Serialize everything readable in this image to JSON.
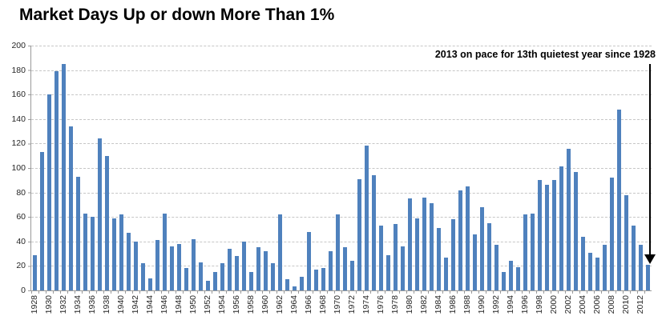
{
  "title": "Market Days Up or down More Than 1%",
  "annotation": {
    "text": "2013 on pace for 13th quietest year since 1928"
  },
  "colors": {
    "bar": "#4f81bd",
    "gridline": "#c6c6c6",
    "axis": "#9a9a9a",
    "text": "#262626",
    "annotation_arrow": "#000000"
  },
  "chart_data": {
    "type": "bar",
    "title": "Market Days Up or down More Than 1%",
    "xlabel": "",
    "ylabel": "",
    "ylim": [
      0,
      200
    ],
    "yticks": [
      0,
      20,
      40,
      60,
      80,
      100,
      120,
      140,
      160,
      180,
      200
    ],
    "grid": "dashed horizontal",
    "legend": "none",
    "x_label_step": 2,
    "x": [
      1928,
      1929,
      1930,
      1931,
      1932,
      1933,
      1934,
      1935,
      1936,
      1937,
      1938,
      1939,
      1940,
      1941,
      1942,
      1943,
      1944,
      1945,
      1946,
      1947,
      1948,
      1949,
      1950,
      1951,
      1952,
      1953,
      1954,
      1955,
      1956,
      1957,
      1958,
      1959,
      1960,
      1961,
      1962,
      1963,
      1964,
      1965,
      1966,
      1967,
      1968,
      1969,
      1970,
      1971,
      1972,
      1973,
      1974,
      1975,
      1976,
      1977,
      1978,
      1979,
      1980,
      1981,
      1982,
      1983,
      1984,
      1985,
      1986,
      1987,
      1988,
      1989,
      1990,
      1991,
      1992,
      1993,
      1994,
      1995,
      1996,
      1997,
      1998,
      1999,
      2000,
      2001,
      2002,
      2003,
      2004,
      2005,
      2006,
      2007,
      2008,
      2009,
      2010,
      2011,
      2012,
      2013
    ],
    "values": [
      29,
      113,
      160,
      179,
      185,
      134,
      93,
      63,
      60,
      124,
      110,
      59,
      62,
      47,
      40,
      22,
      10,
      41,
      63,
      36,
      38,
      18,
      42,
      23,
      8,
      15,
      22,
      34,
      28,
      40,
      15,
      35,
      32,
      22,
      62,
      9,
      3,
      11,
      48,
      17,
      18,
      32,
      62,
      35,
      24,
      91,
      118,
      94,
      53,
      29,
      54,
      36,
      75,
      59,
      76,
      71,
      51,
      27,
      58,
      82,
      85,
      46,
      68,
      55,
      37,
      15,
      24,
      19,
      62,
      63,
      90,
      86,
      90,
      101,
      116,
      97,
      44,
      31,
      27,
      37,
      92,
      148,
      78,
      53,
      37,
      21
    ],
    "annotation": {
      "text": "2013 on pace for 13th quietest year since 1928",
      "arrow_points_to_year": 2013
    }
  }
}
